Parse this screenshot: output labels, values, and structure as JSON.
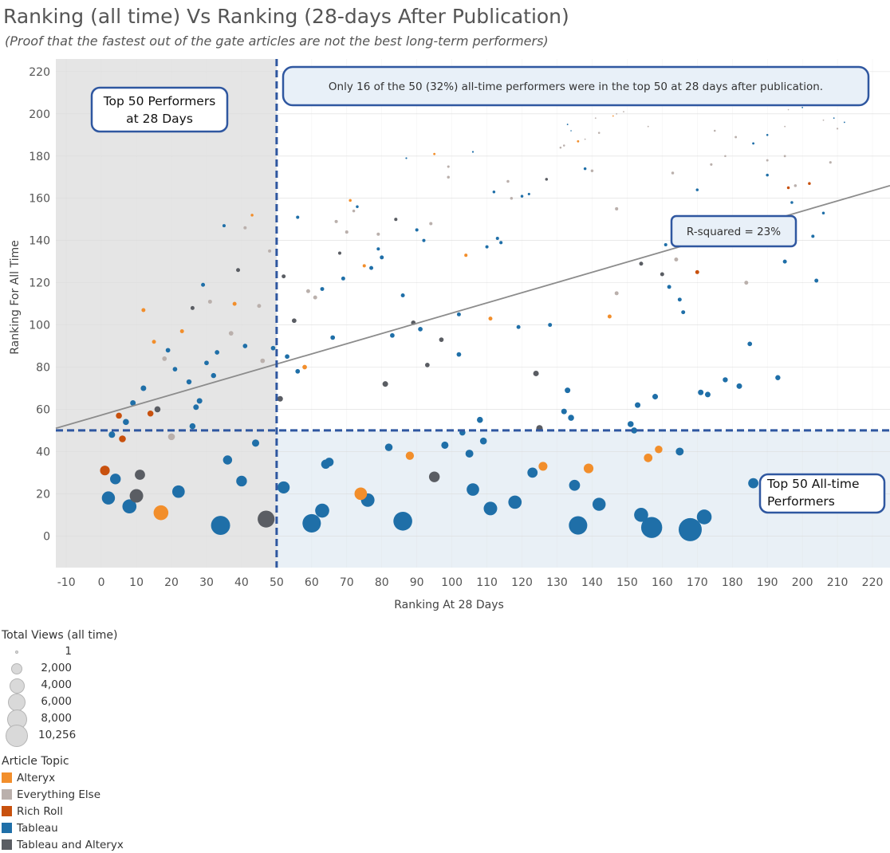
{
  "title": "Ranking (all time) Vs Ranking (28-days After Publication)",
  "subtitle": "(Proof that the fastest out of the gate articles are not the best long-term performers)",
  "chart_data": {
    "type": "scatter",
    "xlabel": "Ranking At 28 Days",
    "ylabel": "Ranking For All Time",
    "xlim": [
      -13,
      225
    ],
    "ylim": [
      -15,
      226
    ],
    "xticks": [
      -10,
      0,
      10,
      20,
      30,
      40,
      50,
      60,
      70,
      80,
      90,
      100,
      110,
      120,
      130,
      140,
      150,
      160,
      170,
      180,
      190,
      200,
      210,
      220
    ],
    "yticks": [
      0,
      20,
      40,
      60,
      80,
      100,
      120,
      140,
      160,
      180,
      200,
      220
    ],
    "reference_lines": {
      "x": 50,
      "y": 50
    },
    "trend_line": {
      "x1": -13,
      "y1": 51,
      "x2": 225,
      "y2": 166
    },
    "annotations": {
      "top50_28days": "Top 50 Performers at 28 Days",
      "summary": "Only 16 of the 50 (32%) all-time performers were in the top 50 at 28 days after publication.",
      "r_squared": "R-squared = 23%",
      "top50_alltime": "Top 50 All-time Performers"
    },
    "topics": [
      {
        "name": "Alteryx",
        "color": "#f28e2b"
      },
      {
        "name": "Everything Else",
        "color": "#bab0ac"
      },
      {
        "name": "Rich Roll",
        "color": "#c8510e"
      },
      {
        "name": "Tableau",
        "color": "#1f6fa8"
      },
      {
        "name": "Tableau and Alteryx",
        "color": "#5a5d63"
      }
    ],
    "size_legend_title": "Total Views (all time)",
    "size_legend": [
      {
        "label": "1",
        "views": 1
      },
      {
        "label": "2,000",
        "views": 2000
      },
      {
        "label": "4,000",
        "views": 4000
      },
      {
        "label": "6,000",
        "views": 6000
      },
      {
        "label": "8,000",
        "views": 8000
      },
      {
        "label": "10,256",
        "views": 10256
      }
    ],
    "topic_legend_title": "Article Topic",
    "points": [
      [
        168,
        3,
        "Tableau",
        10256
      ],
      [
        157,
        4,
        "Tableau",
        8500
      ],
      [
        34,
        5,
        "Tableau",
        7000
      ],
      [
        136,
        5,
        "Tableau",
        6500
      ],
      [
        60,
        6,
        "Tableau",
        6500
      ],
      [
        86,
        7,
        "Tableau",
        6800
      ],
      [
        47,
        8,
        "Tableau and Alteryx",
        5500
      ],
      [
        172,
        9,
        "Tableau",
        4200
      ],
      [
        154,
        10,
        "Tableau",
        3800
      ],
      [
        17,
        11,
        "Alteryx",
        4200
      ],
      [
        63,
        12,
        "Tableau",
        3800
      ],
      [
        111,
        13,
        "Tableau",
        3500
      ],
      [
        8,
        14,
        "Tableau",
        3800
      ],
      [
        142,
        15,
        "Tableau",
        3300
      ],
      [
        118,
        16,
        "Tableau",
        3400
      ],
      [
        76,
        17,
        "Tableau",
        3500
      ],
      [
        2,
        18,
        "Tableau",
        3300
      ],
      [
        10,
        19,
        "Tableau and Alteryx",
        3500
      ],
      [
        74,
        20,
        "Alteryx",
        3000
      ],
      [
        22,
        21,
        "Tableau",
        3000
      ],
      [
        106,
        22,
        "Tableau",
        3000
      ],
      [
        52,
        23,
        "Tableau",
        2800
      ],
      [
        135,
        24,
        "Tableau",
        2300
      ],
      [
        186,
        25,
        "Tableau",
        2000
      ],
      [
        40,
        26,
        "Tableau",
        2200
      ],
      [
        4,
        27,
        "Tableau",
        2200
      ],
      [
        95,
        28,
        "Tableau and Alteryx",
        2200
      ],
      [
        11,
        29,
        "Tableau and Alteryx",
        2000
      ],
      [
        123,
        30,
        "Tableau",
        2000
      ],
      [
        1,
        31,
        "Rich Roll",
        1800
      ],
      [
        139,
        32,
        "Alteryx",
        1800
      ],
      [
        126,
        33,
        "Alteryx",
        1500
      ],
      [
        64,
        34,
        "Tableau",
        1600
      ],
      [
        65,
        35,
        "Tableau",
        1500
      ],
      [
        36,
        36,
        "Tableau",
        1600
      ],
      [
        156,
        37,
        "Alteryx",
        1400
      ],
      [
        88,
        38,
        "Alteryx",
        1300
      ],
      [
        105,
        39,
        "Tableau",
        1200
      ],
      [
        165,
        40,
        "Tableau",
        1200
      ],
      [
        159,
        41,
        "Alteryx",
        1100
      ],
      [
        82,
        42,
        "Tableau",
        1100
      ],
      [
        98,
        43,
        "Tableau",
        1000
      ],
      [
        44,
        44,
        "Tableau",
        1000
      ],
      [
        109,
        45,
        "Tableau",
        900
      ],
      [
        6,
        46,
        "Rich Roll",
        900
      ],
      [
        20,
        47,
        "Everything Else",
        900
      ],
      [
        3,
        48,
        "Tableau",
        800
      ],
      [
        103,
        49,
        "Tableau",
        700
      ],
      [
        152,
        50,
        "Tableau",
        700
      ],
      [
        125,
        51,
        "Tableau and Alteryx",
        800
      ],
      [
        26,
        52,
        "Tableau",
        700
      ],
      [
        151,
        53,
        "Tableau",
        700
      ],
      [
        7,
        54,
        "Tableau",
        700
      ],
      [
        108,
        55,
        "Tableau",
        700
      ],
      [
        134,
        56,
        "Tableau",
        700
      ],
      [
        5,
        57,
        "Rich Roll",
        700
      ],
      [
        14,
        58,
        "Rich Roll",
        700
      ],
      [
        132,
        59,
        "Tableau",
        600
      ],
      [
        16,
        60,
        "Tableau and Alteryx",
        700
      ],
      [
        27,
        61,
        "Tableau",
        600
      ],
      [
        153,
        62,
        "Tableau",
        600
      ],
      [
        9,
        63,
        "Tableau",
        600
      ],
      [
        28,
        64,
        "Tableau",
        600
      ],
      [
        51,
        65,
        "Tableau and Alteryx",
        600
      ],
      [
        158,
        66,
        "Tableau",
        600
      ],
      [
        173,
        67,
        "Tableau",
        600
      ],
      [
        171,
        68,
        "Tableau",
        600
      ],
      [
        133,
        69,
        "Tableau",
        600
      ],
      [
        12,
        70,
        "Tableau",
        600
      ],
      [
        182,
        71,
        "Tableau",
        600
      ],
      [
        81,
        72,
        "Tableau and Alteryx",
        600
      ],
      [
        25,
        73,
        "Tableau",
        500
      ],
      [
        178,
        74,
        "Tableau",
        500
      ],
      [
        193,
        75,
        "Tableau",
        500
      ],
      [
        32,
        76,
        "Tableau",
        500
      ],
      [
        124,
        77,
        "Tableau and Alteryx",
        600
      ],
      [
        56,
        78,
        "Tableau",
        400
      ],
      [
        21,
        79,
        "Tableau",
        400
      ],
      [
        58,
        80,
        "Alteryx",
        400
      ],
      [
        93,
        81,
        "Tableau and Alteryx",
        400
      ],
      [
        30,
        82,
        "Tableau",
        400
      ],
      [
        46,
        83,
        "Everything Else",
        400
      ],
      [
        18,
        84,
        "Everything Else",
        400
      ],
      [
        53,
        85,
        "Tableau",
        400
      ],
      [
        102,
        86,
        "Tableau",
        400
      ],
      [
        33,
        87,
        "Tableau",
        400
      ],
      [
        19,
        88,
        "Tableau",
        400
      ],
      [
        49,
        89,
        "Tableau",
        400
      ],
      [
        41,
        90,
        "Tableau",
        400
      ],
      [
        185,
        91,
        "Tableau",
        400
      ],
      [
        15,
        92,
        "Alteryx",
        300
      ],
      [
        97,
        93,
        "Tableau and Alteryx",
        400
      ],
      [
        66,
        94,
        "Tableau",
        400
      ],
      [
        83,
        95,
        "Tableau",
        400
      ],
      [
        37,
        96,
        "Everything Else",
        400
      ],
      [
        23,
        97,
        "Alteryx",
        300
      ],
      [
        91,
        98,
        "Tableau",
        400
      ],
      [
        119,
        99,
        "Tableau",
        300
      ],
      [
        128,
        100,
        "Tableau",
        300
      ],
      [
        89,
        101,
        "Tableau and Alteryx",
        400
      ],
      [
        55,
        102,
        "Tableau and Alteryx",
        400
      ],
      [
        111,
        103,
        "Alteryx",
        300
      ],
      [
        145,
        104,
        "Alteryx",
        300
      ],
      [
        102,
        105,
        "Tableau",
        300
      ],
      [
        166,
        106,
        "Tableau",
        300
      ],
      [
        12,
        107,
        "Alteryx",
        300
      ],
      [
        26,
        108,
        "Tableau and Alteryx",
        300
      ],
      [
        45,
        109,
        "Everything Else",
        300
      ],
      [
        38,
        110,
        "Alteryx",
        300
      ],
      [
        31,
        111,
        "Everything Else",
        300
      ],
      [
        165,
        112,
        "Tableau",
        300
      ],
      [
        61,
        113,
        "Everything Else",
        300
      ],
      [
        86,
        114,
        "Tableau",
        300
      ],
      [
        147,
        115,
        "Everything Else",
        300
      ],
      [
        59,
        116,
        "Everything Else",
        300
      ],
      [
        63,
        117,
        "Tableau",
        300
      ],
      [
        162,
        118,
        "Tableau",
        300
      ],
      [
        29,
        119,
        "Tableau",
        300
      ],
      [
        184,
        120,
        "Everything Else",
        300
      ],
      [
        204,
        121,
        "Tableau",
        300
      ],
      [
        69,
        122,
        "Tableau",
        300
      ],
      [
        52,
        123,
        "Tableau and Alteryx",
        300
      ],
      [
        160,
        124,
        "Tableau and Alteryx",
        300
      ],
      [
        170,
        125,
        "Rich Roll",
        300
      ],
      [
        39,
        126,
        "Tableau and Alteryx",
        300
      ],
      [
        77,
        127,
        "Tableau",
        300
      ],
      [
        75,
        128,
        "Alteryx",
        200
      ],
      [
        154,
        129,
        "Tableau and Alteryx",
        300
      ],
      [
        195,
        130,
        "Tableau",
        300
      ],
      [
        164,
        131,
        "Everything Else",
        300
      ],
      [
        80,
        132,
        "Tableau",
        300
      ],
      [
        104,
        133,
        "Alteryx",
        200
      ],
      [
        68,
        134,
        "Tableau and Alteryx",
        200
      ],
      [
        48,
        135,
        "Everything Else",
        200
      ],
      [
        79,
        136,
        "Tableau",
        200
      ],
      [
        110,
        137,
        "Tableau",
        200
      ],
      [
        161,
        138,
        "Tableau",
        200
      ],
      [
        114,
        139,
        "Tableau",
        200
      ],
      [
        92,
        140,
        "Tableau",
        200
      ],
      [
        113,
        141,
        "Tableau",
        200
      ],
      [
        203,
        142,
        "Tableau",
        200
      ],
      [
        79,
        143,
        "Everything Else",
        200
      ],
      [
        70,
        144,
        "Everything Else",
        200
      ],
      [
        90,
        145,
        "Tableau",
        200
      ],
      [
        41,
        146,
        "Everything Else",
        200
      ],
      [
        35,
        147,
        "Tableau",
        200
      ],
      [
        94,
        148,
        "Everything Else",
        200
      ],
      [
        67,
        149,
        "Everything Else",
        200
      ],
      [
        84,
        150,
        "Tableau and Alteryx",
        200
      ],
      [
        56,
        151,
        "Tableau",
        200
      ],
      [
        43,
        152,
        "Alteryx",
        150
      ],
      [
        206,
        153,
        "Tableau",
        150
      ],
      [
        72,
        154,
        "Everything Else",
        150
      ],
      [
        147,
        155,
        "Everything Else",
        200
      ],
      [
        73,
        156,
        "Tableau",
        150
      ],
      [
        197,
        158,
        "Tableau",
        150
      ],
      [
        71,
        159,
        "Alteryx",
        150
      ],
      [
        117,
        160,
        "Everything Else",
        150
      ],
      [
        122,
        162,
        "Tableau",
        120
      ],
      [
        120,
        161,
        "Tableau",
        150
      ],
      [
        170,
        164,
        "Tableau",
        150
      ],
      [
        112,
        163,
        "Tableau",
        150
      ],
      [
        196,
        165,
        "Rich Roll",
        150
      ],
      [
        198,
        166,
        "Everything Else",
        150
      ],
      [
        202,
        167,
        "Rich Roll",
        150
      ],
      [
        116,
        168,
        "Everything Else",
        150
      ],
      [
        127,
        169,
        "Tableau and Alteryx",
        150
      ],
      [
        99,
        170,
        "Everything Else",
        150
      ],
      [
        190,
        171,
        "Tableau",
        150
      ],
      [
        163,
        172,
        "Everything Else",
        150
      ],
      [
        140,
        173,
        "Everything Else",
        150
      ],
      [
        138,
        174,
        "Tableau",
        150
      ],
      [
        99,
        175,
        "Everything Else",
        120
      ],
      [
        174,
        176,
        "Everything Else",
        120
      ],
      [
        208,
        177,
        "Everything Else",
        120
      ],
      [
        190,
        178,
        "Everything Else",
        100
      ],
      [
        195,
        180,
        "Everything Else",
        100
      ],
      [
        95,
        181,
        "Alteryx",
        100
      ],
      [
        106,
        182,
        "Tableau",
        60
      ],
      [
        186,
        186,
        "Tableau",
        100
      ],
      [
        136,
        187,
        "Alteryx",
        100
      ],
      [
        181,
        189,
        "Everything Else",
        100
      ],
      [
        190,
        190,
        "Tableau",
        80
      ],
      [
        142,
        191,
        "Everything Else",
        80
      ],
      [
        87,
        179,
        "Tableau",
        60
      ],
      [
        131,
        184,
        "Everything Else",
        80
      ],
      [
        132,
        185,
        "Everything Else",
        80
      ],
      [
        178,
        180,
        "Everything Else",
        80
      ],
      [
        175,
        192,
        "Everything Else",
        80
      ],
      [
        210,
        193,
        "Everything Else",
        60
      ],
      [
        133,
        195,
        "Tableau",
        40
      ],
      [
        156,
        194,
        "Everything Else",
        40
      ],
      [
        195,
        194,
        "Everything Else",
        40
      ],
      [
        212,
        196,
        "Tableau",
        40
      ],
      [
        206,
        197,
        "Everything Else",
        40
      ],
      [
        209,
        198,
        "Tableau",
        40
      ],
      [
        141,
        198,
        "Everything Else",
        40
      ],
      [
        147,
        200,
        "Everything Else",
        40
      ],
      [
        146,
        199,
        "Alteryx",
        40
      ],
      [
        149,
        201,
        "Everything Else",
        40
      ],
      [
        200,
        203,
        "Tableau",
        40
      ],
      [
        196,
        202,
        "Everything Else",
        30
      ],
      [
        138,
        188,
        "Everything Else",
        40
      ],
      [
        134,
        192,
        "Tableau",
        30
      ]
    ]
  }
}
